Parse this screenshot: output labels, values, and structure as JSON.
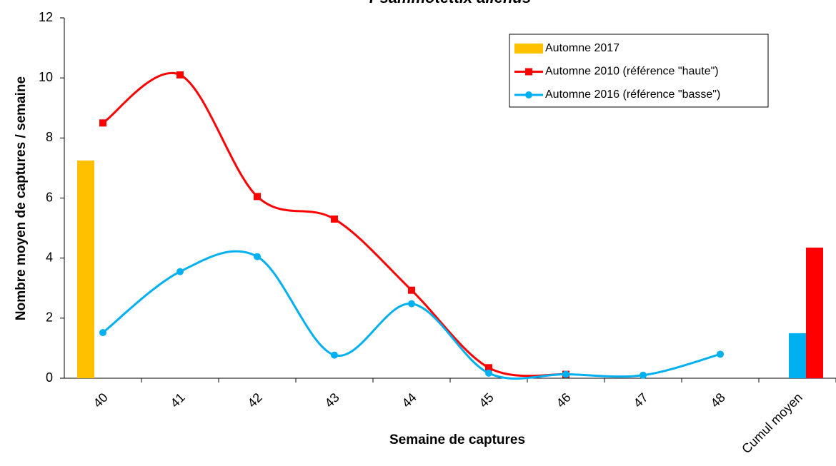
{
  "chart_data": {
    "type": "combo",
    "title": "Psammotettix alienus",
    "x_label": "Semaine de captures",
    "y_label": "Nombre moyen de captures / semaine",
    "categories": [
      "40",
      "41",
      "42",
      "43",
      "44",
      "45",
      "46",
      "47",
      "48",
      "Cumul moyen"
    ],
    "ylim": [
      0,
      12
    ],
    "yticks": [
      0,
      2,
      4,
      6,
      8,
      10,
      12
    ],
    "legend": "top-right",
    "series": [
      {
        "name": "Automne 2017",
        "color": "#ffc000",
        "mark": "bar",
        "bar_values": [
          7.25,
          null,
          null,
          null,
          null,
          null,
          null,
          null,
          null,
          null
        ]
      },
      {
        "name": "Automne 2010 (référence \"haute\")",
        "color": "#ff0000",
        "mark": "line",
        "marker": "square",
        "values": [
          8.5,
          10.1,
          6.05,
          5.3,
          2.93,
          0.35,
          0.13,
          null,
          null,
          null
        ],
        "bar_values": [
          null,
          null,
          null,
          null,
          null,
          null,
          null,
          null,
          null,
          4.35
        ]
      },
      {
        "name": "Automne 2016 (référence \"basse\")",
        "color": "#00b0f0",
        "mark": "line",
        "marker": "circle",
        "values": [
          1.52,
          3.55,
          4.05,
          0.77,
          2.48,
          0.17,
          0.13,
          0.1,
          0.8,
          null
        ],
        "bar_values": [
          null,
          null,
          null,
          null,
          null,
          null,
          null,
          null,
          null,
          1.5
        ]
      }
    ]
  }
}
